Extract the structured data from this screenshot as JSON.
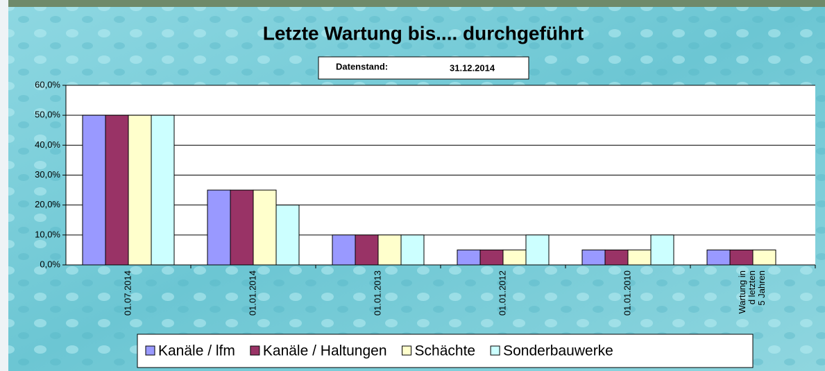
{
  "chart_data": {
    "type": "bar",
    "title": "Letzte Wartung bis.... durchgeführt",
    "date_label": "Datenstand:",
    "date_value": "31.12.2014",
    "categories": [
      "01.07.2014",
      "01.01.2014",
      "01.01.2013",
      "01.01.2012",
      "01.01.2010",
      "Wartung in d letzten 5 Jahren"
    ],
    "series": [
      {
        "name": "Kanäle / lfm",
        "color": "#9999ff",
        "values": [
          50,
          25,
          10,
          5,
          5,
          5
        ]
      },
      {
        "name": "Kanäle / Haltungen",
        "color": "#993366",
        "values": [
          50,
          25,
          10,
          5,
          5,
          5
        ]
      },
      {
        "name": "Schächte",
        "color": "#ffffcc",
        "values": [
          50,
          25,
          10,
          5,
          5,
          5
        ]
      },
      {
        "name": "Sonderbauwerke",
        "color": "#ccffff",
        "values": [
          50,
          20,
          10,
          10,
          10,
          0
        ]
      }
    ],
    "ylim": [
      0,
      60
    ],
    "yticks": [
      {
        "value": 0,
        "label": "0,0%"
      },
      {
        "value": 10,
        "label": "10,0%"
      },
      {
        "value": 20,
        "label": "20,0%"
      },
      {
        "value": 30,
        "label": "30,0%"
      },
      {
        "value": 40,
        "label": "40,0%"
      },
      {
        "value": 50,
        "label": "50,0%"
      },
      {
        "value": 60,
        "label": "60,0%"
      }
    ],
    "grid": true,
    "legend": "bottom"
  }
}
